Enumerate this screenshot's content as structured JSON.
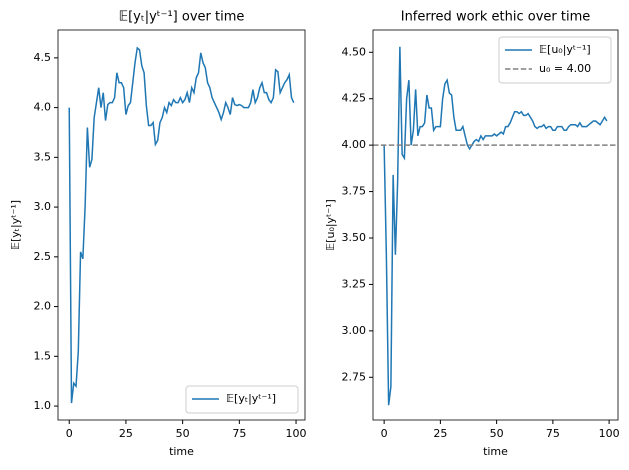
{
  "chart_data": [
    {
      "type": "line",
      "title": "𝔼[yₜ|yᵗ⁻¹] over time",
      "xlabel": "time",
      "ylabel": "𝔼[yₜ|yᵗ⁻¹]",
      "legend": "lower right",
      "grid": false,
      "x": [
        0,
        1,
        2,
        3,
        4,
        5,
        6,
        7,
        8,
        9,
        10,
        11,
        12,
        13,
        14,
        15,
        16,
        17,
        18,
        19,
        20,
        21,
        22,
        23,
        24,
        25,
        26,
        27,
        28,
        29,
        30,
        31,
        32,
        33,
        34,
        35,
        36,
        37,
        38,
        39,
        40,
        41,
        42,
        43,
        44,
        45,
        46,
        47,
        48,
        49,
        50,
        51,
        52,
        53,
        54,
        55,
        56,
        57,
        58,
        59,
        60,
        61,
        62,
        63,
        64,
        65,
        66,
        67,
        68,
        69,
        70,
        71,
        72,
        73,
        74,
        75,
        76,
        77,
        78,
        79,
        80,
        81,
        82,
        83,
        84,
        85,
        86,
        87,
        88,
        89,
        90,
        91,
        92,
        93,
        94,
        95,
        96,
        97,
        98,
        99
      ],
      "series": [
        {
          "name": "𝔼[yₜ|yᵗ⁻¹]",
          "color": "#1f77b4",
          "values": [
            4.0,
            1.03,
            1.23,
            1.2,
            1.55,
            2.55,
            2.48,
            3.0,
            3.8,
            3.4,
            3.48,
            3.9,
            4.05,
            4.2,
            4.0,
            4.15,
            3.87,
            4.03,
            4.05,
            4.05,
            4.1,
            4.35,
            4.25,
            4.25,
            4.2,
            3.93,
            4.02,
            4.05,
            4.25,
            4.45,
            4.6,
            4.58,
            4.42,
            4.35,
            4.02,
            3.82,
            3.82,
            3.85,
            3.63,
            3.67,
            3.85,
            3.9,
            4.0,
            3.95,
            4.05,
            4.02,
            4.08,
            4.05,
            4.05,
            4.1,
            4.05,
            4.08,
            4.15,
            4.05,
            4.2,
            4.15,
            4.3,
            4.35,
            4.55,
            4.45,
            4.4,
            4.25,
            4.2,
            4.1,
            4.05,
            4.0,
            3.95,
            3.88,
            3.95,
            4.05,
            4.0,
            3.93,
            4.1,
            4.03,
            4.02,
            4.03,
            4.02,
            4.0,
            4.0,
            4.0,
            4.05,
            4.18,
            4.05,
            4.1,
            4.2,
            4.25,
            4.15,
            4.15,
            4.08,
            4.05,
            4.1,
            4.38,
            4.36,
            4.15,
            4.2,
            4.25,
            4.28,
            4.33,
            4.1,
            4.05
          ]
        }
      ],
      "xlim": [
        -4.95,
        103.95
      ],
      "xticks": [
        0,
        25,
        50,
        75,
        100
      ],
      "ylim": [
        0.86,
        4.78
      ],
      "yticks": [
        {
          "value": 1.0,
          "label": "1.0"
        },
        1.5,
        {
          "value": 2.0,
          "label": "2.0"
        },
        2.5,
        {
          "value": 3.0,
          "label": "3.0"
        },
        3.5,
        {
          "value": 4.0,
          "label": "4.0"
        },
        4.5
      ]
    },
    {
      "type": "line",
      "title": "Inferred work ethic over time",
      "xlabel": "time",
      "ylabel": "𝔼[u₀|yᵗ⁻¹]",
      "legend": "upper right",
      "grid": false,
      "x": [
        0,
        1,
        2,
        3,
        4,
        5,
        6,
        7,
        8,
        9,
        10,
        11,
        12,
        13,
        14,
        15,
        16,
        17,
        18,
        19,
        20,
        21,
        22,
        23,
        24,
        25,
        26,
        27,
        28,
        29,
        30,
        31,
        32,
        33,
        34,
        35,
        36,
        37,
        38,
        39,
        40,
        41,
        42,
        43,
        44,
        45,
        46,
        47,
        48,
        49,
        50,
        51,
        52,
        53,
        54,
        55,
        56,
        57,
        58,
        59,
        60,
        61,
        62,
        63,
        64,
        65,
        66,
        67,
        68,
        69,
        70,
        71,
        72,
        73,
        74,
        75,
        76,
        77,
        78,
        79,
        80,
        81,
        82,
        83,
        84,
        85,
        86,
        87,
        88,
        89,
        90,
        91,
        92,
        93,
        94,
        95,
        96,
        97,
        98,
        99
      ],
      "series": [
        {
          "name": "𝔼[u₀|yᵗ⁻¹]",
          "color": "#1f77b4",
          "values": [
            4.0,
            3.4,
            2.6,
            2.7,
            3.84,
            3.41,
            3.8,
            4.53,
            3.95,
            3.93,
            4.25,
            4.35,
            4.0,
            4.08,
            4.3,
            4.05,
            4.1,
            4.1,
            4.12,
            4.27,
            4.2,
            4.2,
            4.08,
            4.1,
            4.1,
            4.1,
            4.25,
            4.33,
            4.35,
            4.28,
            4.27,
            4.15,
            4.08,
            4.08,
            4.08,
            4.1,
            4.05,
            4.0,
            3.98,
            4.0,
            4.02,
            4.03,
            4.02,
            4.05,
            4.03,
            4.05,
            4.05,
            4.05,
            4.05,
            4.06,
            4.05,
            4.06,
            4.07,
            4.06,
            4.1,
            4.1,
            4.12,
            4.15,
            4.18,
            4.18,
            4.17,
            4.18,
            4.16,
            4.16,
            4.17,
            4.15,
            4.13,
            4.1,
            4.09,
            4.1,
            4.1,
            4.11,
            4.09,
            4.1,
            4.1,
            4.08,
            4.08,
            4.1,
            4.1,
            4.1,
            4.08,
            4.08,
            4.1,
            4.11,
            4.11,
            4.11,
            4.1,
            4.12,
            4.1,
            4.1,
            4.1,
            4.11,
            4.12,
            4.13,
            4.13,
            4.12,
            4.11,
            4.13,
            4.15,
            4.13
          ]
        }
      ],
      "reference_lines": [
        {
          "name": "u₀ = 4.00",
          "value": 4.0,
          "color": "#808080"
        }
      ],
      "xlim": [
        -4.95,
        103.95
      ],
      "xticks": [
        0,
        25,
        50,
        75,
        100
      ],
      "ylim": [
        2.52,
        4.62
      ],
      "yticks": [
        2.75,
        {
          "value": 3.0,
          "label": "3.00"
        },
        3.25,
        {
          "value": 3.5,
          "label": "3.50"
        },
        3.75,
        {
          "value": 4.0,
          "label": "4.00"
        },
        4.25,
        {
          "value": 4.5,
          "label": "4.50"
        }
      ]
    }
  ]
}
